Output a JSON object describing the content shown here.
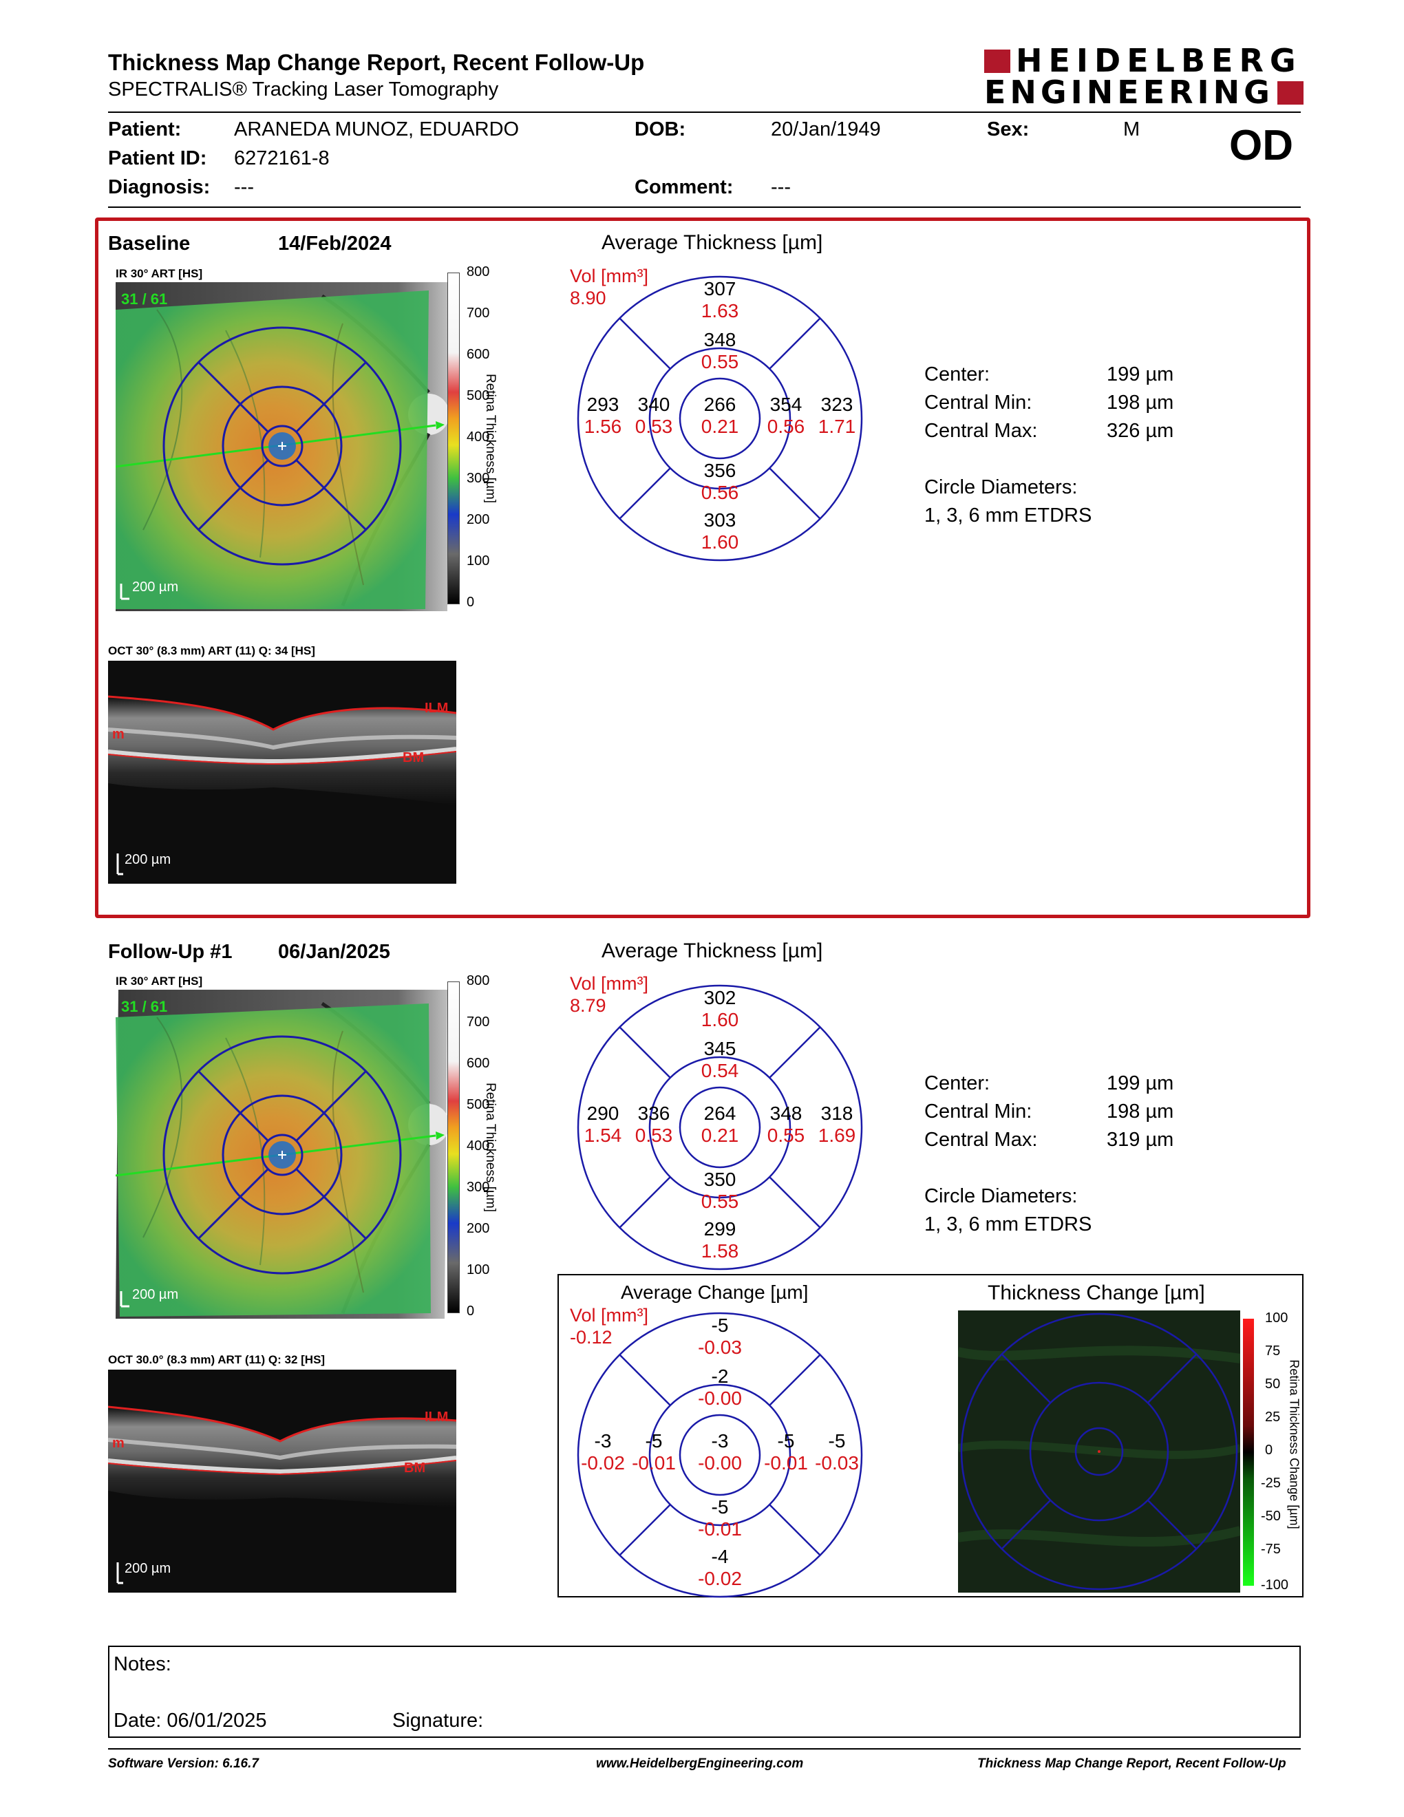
{
  "header": {
    "title": "Thickness Map Change Report, Recent Follow-Up",
    "subtitle": "SPECTRALIS® Tracking Laser Tomography",
    "logo_line1": "HEIDELBERG",
    "logo_line2": "ENGINEERING",
    "eye": "OD"
  },
  "patient": {
    "patient_label": "Patient:",
    "patient_value": "ARANEDA MUNOZ, EDUARDO",
    "dob_label": "DOB:",
    "dob_value": "20/Jan/1949",
    "sex_label": "Sex:",
    "sex_value": "M",
    "id_label": "Patient ID:",
    "id_value": "6272161-8",
    "diagnosis_label": "Diagnosis:",
    "diagnosis_value": "---",
    "comment_label": "Comment:",
    "comment_value": "---"
  },
  "baseline": {
    "label": "Baseline",
    "date": "14/Feb/2024",
    "ir_caption": "IR 30° ART [HS]",
    "ir_counter": "31 / 61",
    "ir_scale": "200 µm",
    "oct_caption": "OCT 30° (8.3 mm) ART (11) Q: 34 [HS]",
    "oct_scale": "200 µm",
    "avg_title": "Average Thickness [µm]",
    "vol_label": "Vol [mm³]",
    "vol_total": "8.90",
    "grid": {
      "outer_top": {
        "t": "307",
        "v": "1.63"
      },
      "inner_top": {
        "t": "348",
        "v": "0.55"
      },
      "outer_left": {
        "t": "293",
        "v": "1.56"
      },
      "inner_left": {
        "t": "340",
        "v": "0.53"
      },
      "center": {
        "t": "266",
        "v": "0.21"
      },
      "inner_right": {
        "t": "354",
        "v": "0.56"
      },
      "outer_right": {
        "t": "323",
        "v": "1.71"
      },
      "inner_bottom": {
        "t": "356",
        "v": "0.56"
      },
      "outer_bottom": {
        "t": "303",
        "v": "1.60"
      }
    },
    "stats": {
      "center_label": "Center:",
      "center_value": "199 µm",
      "min_label": "Central Min:",
      "min_value": "198 µm",
      "max_label": "Central Max:",
      "max_value": "326 µm",
      "diam_label": "Circle Diameters:",
      "diam_value": "1, 3, 6 mm ETDRS"
    }
  },
  "followup": {
    "label": "Follow-Up #1",
    "date": "06/Jan/2025",
    "ir_caption": "IR 30° ART [HS]",
    "ir_counter": "31 / 61",
    "ir_scale": "200 µm",
    "oct_caption": "OCT 30.0° (8.3 mm) ART (11) Q: 32 [HS]",
    "oct_scale": "200 µm",
    "avg_title": "Average Thickness [µm]",
    "vol_label": "Vol [mm³]",
    "vol_total": "8.79",
    "grid": {
      "outer_top": {
        "t": "302",
        "v": "1.60"
      },
      "inner_top": {
        "t": "345",
        "v": "0.54"
      },
      "outer_left": {
        "t": "290",
        "v": "1.54"
      },
      "inner_left": {
        "t": "336",
        "v": "0.53"
      },
      "center": {
        "t": "264",
        "v": "0.21"
      },
      "inner_right": {
        "t": "348",
        "v": "0.55"
      },
      "outer_right": {
        "t": "318",
        "v": "1.69"
      },
      "inner_bottom": {
        "t": "350",
        "v": "0.55"
      },
      "outer_bottom": {
        "t": "299",
        "v": "1.58"
      }
    },
    "stats": {
      "center_label": "Center:",
      "center_value": "199 µm",
      "min_label": "Central Min:",
      "min_value": "198 µm",
      "max_label": "Central Max:",
      "max_value": "319 µm",
      "diam_label": "Circle Diameters:",
      "diam_value": "1, 3, 6 mm ETDRS"
    }
  },
  "change": {
    "avg_title": "Average Change [µm]",
    "vol_label": "Vol [mm³]",
    "vol_total": "-0.12",
    "grid": {
      "outer_top": {
        "t": "-5",
        "v": "-0.03"
      },
      "inner_top": {
        "t": "-2",
        "v": "-0.00"
      },
      "outer_left": {
        "t": "-3",
        "v": "-0.02"
      },
      "inner_left": {
        "t": "-5",
        "v": "-0.01"
      },
      "center": {
        "t": "-3",
        "v": "-0.00"
      },
      "inner_right": {
        "t": "-5",
        "v": "-0.01"
      },
      "outer_right": {
        "t": "-5",
        "v": "-0.03"
      },
      "inner_bottom": {
        "t": "-5",
        "v": "-0.01"
      },
      "outer_bottom": {
        "t": "-4",
        "v": "-0.02"
      }
    },
    "map_title": "Thickness Change [µm]",
    "scale_labels": [
      "100",
      "75",
      "50",
      "25",
      "0",
      "-25",
      "-50",
      "-75",
      "-100"
    ],
    "scale_axis_label": "Retina Thickness Change [µm]"
  },
  "thickness_scale": {
    "labels": [
      "800",
      "700",
      "600",
      "500",
      "400",
      "300",
      "200",
      "100",
      "0"
    ],
    "axis_label": "Retina Thickness [µm]"
  },
  "oct_labels": {
    "ilm": "ILM",
    "bm": "BM",
    "m": "m"
  },
  "notes": {
    "notes_label": "Notes:",
    "date_label": "Date: 06/01/2025",
    "signature_label": "Signature:"
  },
  "footer": {
    "software": "Software Version: 6.16.7",
    "website": "www.HeidelbergEngineering.com",
    "report": "Thickness Map Change Report, Recent Follow-Up"
  },
  "colors": {
    "brand_red": "#c0141c",
    "value_red": "#d6141a",
    "grid_blue": "#1a1aa8"
  }
}
